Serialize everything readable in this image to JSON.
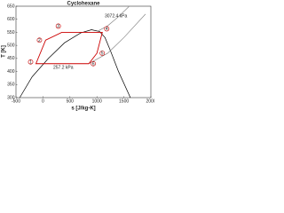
{
  "chart_data": {
    "type": "line",
    "title": "Cyclohexane",
    "x_label": "s [J/kg-K]",
    "y_label": "T [K]",
    "xlim": [
      -500,
      2000
    ],
    "xticks": [
      -500,
      0,
      500,
      1000,
      1500,
      2000
    ],
    "ylim": [
      300,
      650
    ],
    "yticks": [
      300,
      350,
      400,
      450,
      500,
      550,
      600,
      650
    ],
    "series": [
      {
        "color": "#000000",
        "x": [
          -430,
          -200,
          100,
          400,
          700,
          900,
          1050,
          1150,
          1250,
          1400,
          1620
        ],
        "values": [
          300,
          380,
          450,
          510,
          548,
          560,
          553,
          530,
          480,
          400,
          300
        ]
      },
      {
        "color": "#888888",
        "label": "3072.4 kPa",
        "x": [
          1000,
          1200,
          1400,
          1600
        ],
        "values": [
          553,
          575,
          610,
          650
        ]
      },
      {
        "color": "#888888",
        "label": "257.2 kPa",
        "x": [
          850,
          1200,
          1500,
          1900
        ],
        "values": [
          430,
          470,
          530,
          620
        ]
      },
      {
        "color": "#cc0000",
        "point_labels": [
          "1",
          "2",
          "3",
          "4",
          "5",
          "6"
        ],
        "x": [
          -130,
          50,
          350,
          1100,
          1000,
          850
        ],
        "values": [
          430,
          520,
          550,
          550,
          470,
          430
        ]
      }
    ]
  }
}
